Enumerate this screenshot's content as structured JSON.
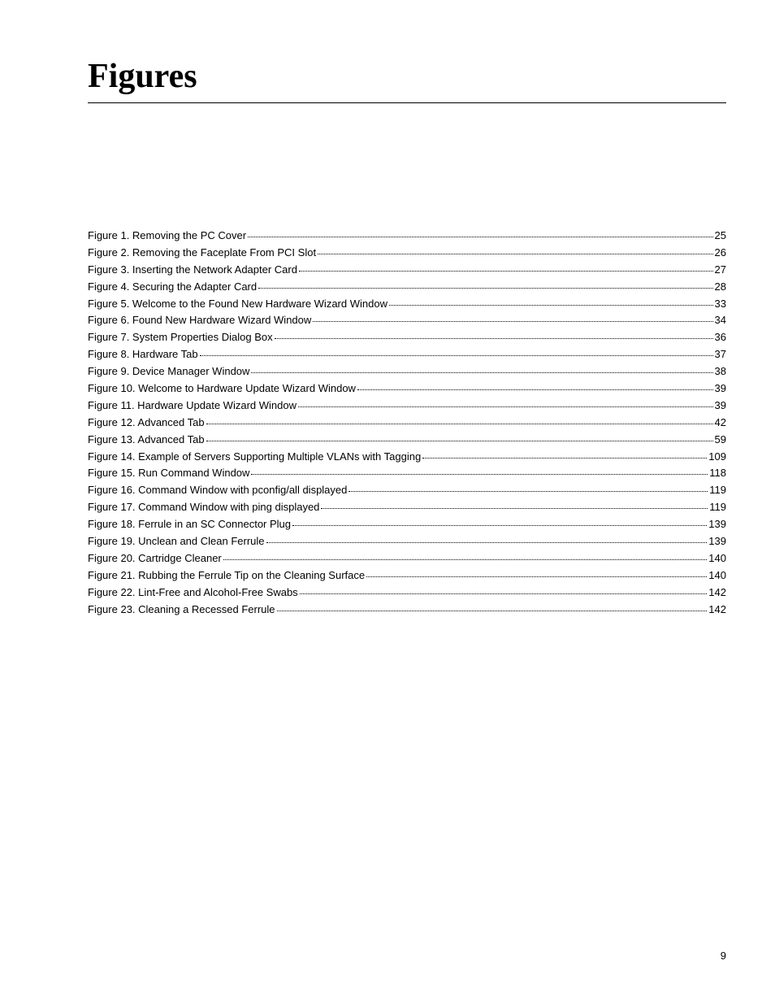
{
  "title": "Figures",
  "page_number": "9",
  "typography": {
    "title_font_family": "Times New Roman",
    "title_font_size_pt": 32,
    "title_font_weight": "bold",
    "body_font_family": "Arial",
    "body_font_size_pt": 10,
    "text_color": "#000000",
    "background_color": "#ffffff",
    "rule_color": "#000000",
    "leader_style": "dotted"
  },
  "entries": [
    {
      "label": "Figure 1.  Removing the PC Cover",
      "page": "25"
    },
    {
      "label": "Figure 2.  Removing the Faceplate From PCI Slot",
      "page": "26"
    },
    {
      "label": "Figure 3.  Inserting the Network Adapter Card",
      "page": "27"
    },
    {
      "label": "Figure 4.  Securing the Adapter Card",
      "page": "28"
    },
    {
      "label": "Figure 5.  Welcome to the Found New Hardware Wizard Window",
      "page": "33"
    },
    {
      "label": "Figure 6.  Found New Hardware Wizard Window",
      "page": "34"
    },
    {
      "label": "Figure 7.  System Properties Dialog Box",
      "page": "36"
    },
    {
      "label": "Figure 8.  Hardware Tab",
      "page": "37"
    },
    {
      "label": "Figure 9.  Device Manager Window",
      "page": "38"
    },
    {
      "label": "Figure 10.  Welcome to Hardware Update Wizard Window",
      "page": "39"
    },
    {
      "label": "Figure 11.  Hardware Update Wizard Window",
      "page": "39"
    },
    {
      "label": "Figure 12.  Advanced Tab",
      "page": "42"
    },
    {
      "label": "Figure 13.  Advanced Tab",
      "page": "59"
    },
    {
      "label": "Figure 14.  Example of Servers Supporting Multiple VLANs with Tagging",
      "page": "109"
    },
    {
      "label": "Figure 15.  Run Command Window",
      "page": "118"
    },
    {
      "label": "Figure 16.  Command Window with pconfig/all displayed",
      "page": "119"
    },
    {
      "label": "Figure 17.  Command Window with ping displayed",
      "page": "119"
    },
    {
      "label": "Figure 18.  Ferrule in an SC Connector Plug",
      "page": "139"
    },
    {
      "label": "Figure 19.  Unclean and Clean Ferrule",
      "page": "139"
    },
    {
      "label": "Figure 20.  Cartridge Cleaner",
      "page": "140"
    },
    {
      "label": "Figure 21.  Rubbing the Ferrule Tip on the Cleaning Surface",
      "page": "140"
    },
    {
      "label": "Figure 22.  Lint-Free and Alcohol-Free Swabs",
      "page": "142"
    },
    {
      "label": "Figure 23.  Cleaning a Recessed Ferrule",
      "page": "142"
    }
  ]
}
